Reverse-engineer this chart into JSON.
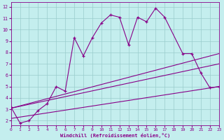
{
  "main_line_x": [
    0,
    1,
    2,
    3,
    4,
    5,
    6,
    7,
    8,
    9,
    10,
    11,
    12,
    13,
    14,
    15,
    16,
    17,
    19,
    20,
    21,
    22,
    23
  ],
  "main_line_y": [
    3.2,
    1.8,
    2.0,
    2.9,
    3.5,
    5.0,
    4.6,
    9.3,
    7.7,
    9.3,
    10.6,
    11.3,
    11.1,
    8.7,
    11.1,
    10.7,
    11.9,
    11.1,
    7.9,
    7.9,
    6.2,
    4.9,
    5.0
  ],
  "ref_line1_x": [
    0,
    23
  ],
  "ref_line1_y": [
    3.1,
    7.9
  ],
  "ref_line2_x": [
    0,
    23
  ],
  "ref_line2_y": [
    3.1,
    7.0
  ],
  "ref_line3_x": [
    0,
    23
  ],
  "ref_line3_y": [
    2.2,
    5.0
  ],
  "line_color": "#880088",
  "bg_color": "#c4eeee",
  "grid_color": "#99cccc",
  "axis_label_color": "#880088",
  "xlim": [
    0,
    23
  ],
  "ylim": [
    1.6,
    12.4
  ],
  "yticks": [
    2,
    3,
    4,
    5,
    6,
    7,
    8,
    9,
    10,
    11,
    12
  ],
  "xticks": [
    0,
    1,
    2,
    3,
    4,
    5,
    6,
    7,
    8,
    9,
    10,
    11,
    12,
    13,
    14,
    15,
    16,
    17,
    18,
    19,
    20,
    21,
    22,
    23
  ],
  "xlabel": "Windchill (Refroidissement éolien,°C)"
}
